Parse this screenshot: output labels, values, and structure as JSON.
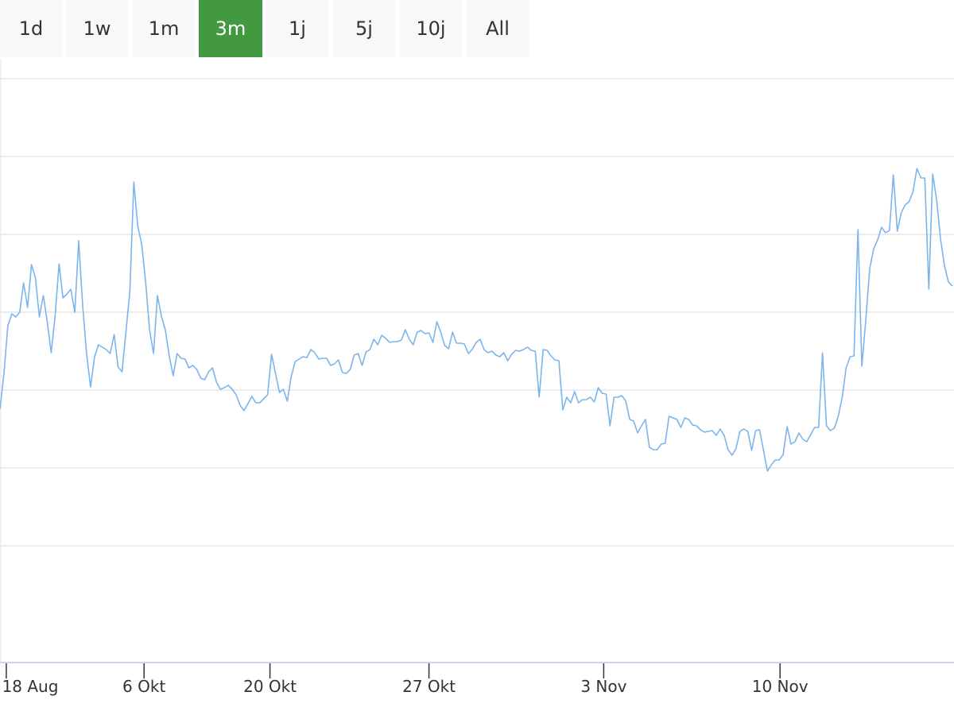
{
  "range_selector": {
    "buttons": [
      "1d",
      "1w",
      "1m",
      "3m",
      "1j",
      "5j",
      "10j",
      "All"
    ],
    "selected": "3m",
    "selected_color": "#43993f"
  },
  "chart_data": {
    "type": "line",
    "title": "",
    "xlabel": "",
    "ylabel": "",
    "x_axis": {
      "ordinal": true,
      "ticks": [
        {
          "label": "18 Aug",
          "index": 1.6
        },
        {
          "label": "6 Okt",
          "index": 36.6
        },
        {
          "label": "20 Okt",
          "index": 68.6
        },
        {
          "label": "27 Okt",
          "index": 109
        },
        {
          "label": "3 Nov",
          "index": 153.4
        },
        {
          "label": "10 Nov",
          "index": 198.2
        }
      ]
    },
    "y_axis": {
      "labels_shown": false,
      "ylim": [
        0,
        76
      ],
      "gridlines": [
        14.7,
        24.5,
        34.3,
        44.1,
        53.9,
        63.7,
        73.5
      ]
    },
    "grid": true,
    "line_color": "#7cb5ec",
    "axis_color": "#ccd6eb",
    "values": [
      31.9,
      36.4,
      42.4,
      43.9,
      43.5,
      44.1,
      47.8,
      44.7,
      50.1,
      48.4,
      43.5,
      46.2,
      42.9,
      39,
      43.6,
      50.2,
      45.9,
      46.4,
      47,
      44.1,
      53.1,
      44.9,
      38.9,
      34.7,
      38.4,
      40,
      39.7,
      39.4,
      38.9,
      41.3,
      37.2,
      36.6,
      41.6,
      46.8,
      60.5,
      54.9,
      52.7,
      47.9,
      41.9,
      38.9,
      46.2,
      43.6,
      41.9,
      38.6,
      36.1,
      38.9,
      38.3,
      38.2,
      37.1,
      37.4,
      36.9,
      35.8,
      35.6,
      36.6,
      37.1,
      35.3,
      34.4,
      34.6,
      34.9,
      34.4,
      33.7,
      32.4,
      31.7,
      32.6,
      33.5,
      32.7,
      32.7,
      33.2,
      33.7,
      38.8,
      36.4,
      34,
      34.4,
      32.9,
      36,
      37.9,
      38.2,
      38.5,
      38.4,
      39.4,
      39,
      38.2,
      38.3,
      38.3,
      37.4,
      37.6,
      38.1,
      36.5,
      36.4,
      36.9,
      38.7,
      38.9,
      37.4,
      39.1,
      39.4,
      40.7,
      40,
      41.2,
      40.8,
      40.3,
      40.4,
      40.4,
      40.6,
      41.9,
      40.7,
      40,
      41.6,
      41.8,
      41.4,
      41.5,
      40.3,
      42.9,
      41.6,
      39.9,
      39.5,
      41.6,
      40.2,
      40.2,
      40.1,
      38.9,
      39.4,
      40.3,
      40.7,
      39.4,
      39,
      39.2,
      38.7,
      38.5,
      39,
      38,
      38.8,
      39.3,
      39.2,
      39.4,
      39.7,
      39.3,
      39.2,
      33.4,
      39.4,
      39.3,
      38.6,
      38.1,
      38,
      31.8,
      33.4,
      32.7,
      34.1,
      32.7,
      33.1,
      33.1,
      33.4,
      32.8,
      34.6,
      33.9,
      33.8,
      29.8,
      33.4,
      33.4,
      33.6,
      32.9,
      30.6,
      30.4,
      28.9,
      29.8,
      30.6,
      27.1,
      26.8,
      26.8,
      27.5,
      27.6,
      31,
      30.8,
      30.6,
      29.6,
      30.8,
      30.6,
      29.9,
      29.8,
      29.3,
      29,
      29.1,
      29.2,
      28.6,
      29.4,
      28.6,
      26.8,
      26.1,
      26.9,
      29.1,
      29.4,
      29.1,
      26.7,
      29.2,
      29.3,
      26.7,
      24.1,
      24.9,
      25.5,
      25.5,
      26.2,
      29.7,
      27.5,
      27.8,
      28.9,
      28.1,
      27.8,
      28.7,
      29.6,
      29.6,
      39,
      29.8,
      29.2,
      29.5,
      31,
      33.4,
      37.1,
      38.5,
      38.6,
      54.5,
      37.3,
      43.2,
      49.6,
      52.1,
      53.2,
      54.8,
      54.1,
      54.4,
      61.4,
      54.3,
      56.6,
      57.6,
      58,
      59.3,
      62.2,
      61,
      61,
      47,
      61.5,
      58.2,
      53.3,
      49.9,
      47.9,
      47.4
    ]
  }
}
